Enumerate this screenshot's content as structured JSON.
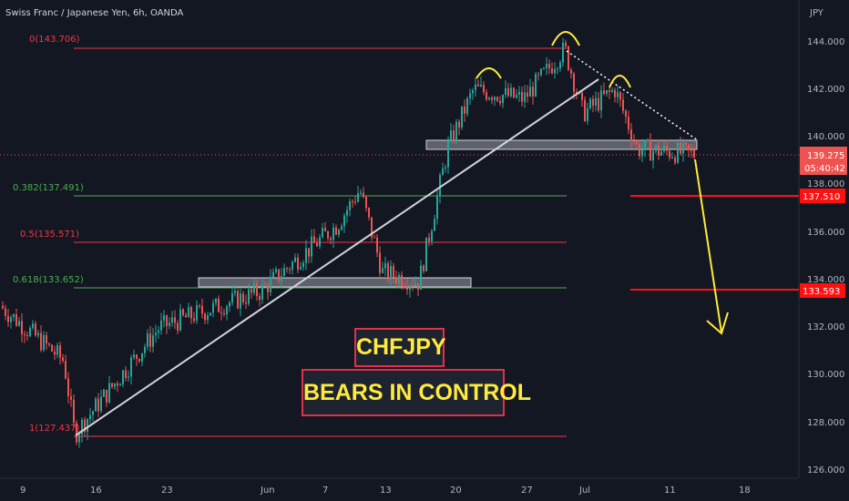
{
  "header": {
    "symbol_title": "Swiss Franc / Japanese Yen, 6h, OANDA",
    "currency": "JPY"
  },
  "price_axis": {
    "ticks": [
      "144.000",
      "142.000",
      "140.000",
      "138.000",
      "136.000",
      "134.000",
      "132.000",
      "130.000",
      "128.000",
      "126.000"
    ]
  },
  "time_axis": {
    "ticks": [
      "9",
      "16",
      "23",
      "Jun",
      "7",
      "13",
      "20",
      "27",
      "Jul",
      "11",
      "18"
    ]
  },
  "badges": {
    "last_price": "139.275",
    "countdown": "05:40:42",
    "level_1": "137.510",
    "level_2": "133.593"
  },
  "fib_labels": {
    "f0": "0(143.706)",
    "f382": "0.382(137.491)",
    "f5": "0.5(135.571)",
    "f618": "0.618(133.652)",
    "f1": "1(127.437)"
  },
  "annotations": {
    "pair": "CHFJPY",
    "headline": "BEARS IN CONTROL"
  },
  "colors": {
    "background": "#131722",
    "up": "#26a69a",
    "down": "#ef5350",
    "fib_red": "#f23645",
    "fib_green": "#4caf50",
    "accent_yellow": "#ffeb3b",
    "trendline": "#d1d4dc",
    "zone": "#787b86"
  },
  "chart_data": {
    "type": "candlestick",
    "title": "Swiss Franc / Japanese Yen, 6h, OANDA",
    "y_unit": "JPY",
    "ylim": [
      126.0,
      145.0
    ],
    "price_ticks": [
      144,
      142,
      140,
      138,
      136,
      134,
      132,
      130,
      128,
      126
    ],
    "x_ticks": [
      "9",
      "16",
      "23",
      "Jun",
      "7",
      "13",
      "20",
      "27",
      "Jul",
      "11",
      "18"
    ],
    "approx_close_path": [
      {
        "t": "9",
        "close": 132.9
      },
      {
        "t": "12",
        "close": 130.6
      },
      {
        "t": "13",
        "close": 127.5
      },
      {
        "t": "16",
        "close": 128.4
      },
      {
        "t": "23",
        "close": 132.0
      },
      {
        "t": "Jun",
        "close": 133.5
      },
      {
        "t": "7",
        "close": 136.3
      },
      {
        "t": "9",
        "close": 137.8
      },
      {
        "t": "13",
        "close": 134.3
      },
      {
        "t": "16",
        "close": 133.9
      },
      {
        "t": "20",
        "close": 139.6
      },
      {
        "t": "23",
        "close": 142.0
      },
      {
        "t": "27",
        "close": 141.6
      },
      {
        "t": "30",
        "close": 143.706
      },
      {
        "t": "Jul",
        "close": 141.0
      },
      {
        "t": "5",
        "close": 142.0
      },
      {
        "t": "7",
        "close": 139.5
      },
      {
        "t": "11",
        "close": 139.275
      }
    ],
    "last_price": 139.275,
    "fibonacci": [
      {
        "ratio": 0,
        "price": 143.706
      },
      {
        "ratio": 0.382,
        "price": 137.491
      },
      {
        "ratio": 0.5,
        "price": 135.571
      },
      {
        "ratio": 0.618,
        "price": 133.652
      },
      {
        "ratio": 1,
        "price": 127.437
      }
    ],
    "horizontal_levels": [
      137.51,
      133.593
    ],
    "zones": [
      {
        "name": "support zone",
        "from": 133.5,
        "to": 134.0
      },
      {
        "name": "neckline zone",
        "from": 139.3,
        "to": 139.7
      }
    ],
    "pattern": "head and shoulders",
    "projection": {
      "from": 139.3,
      "to": 131.9
    }
  }
}
